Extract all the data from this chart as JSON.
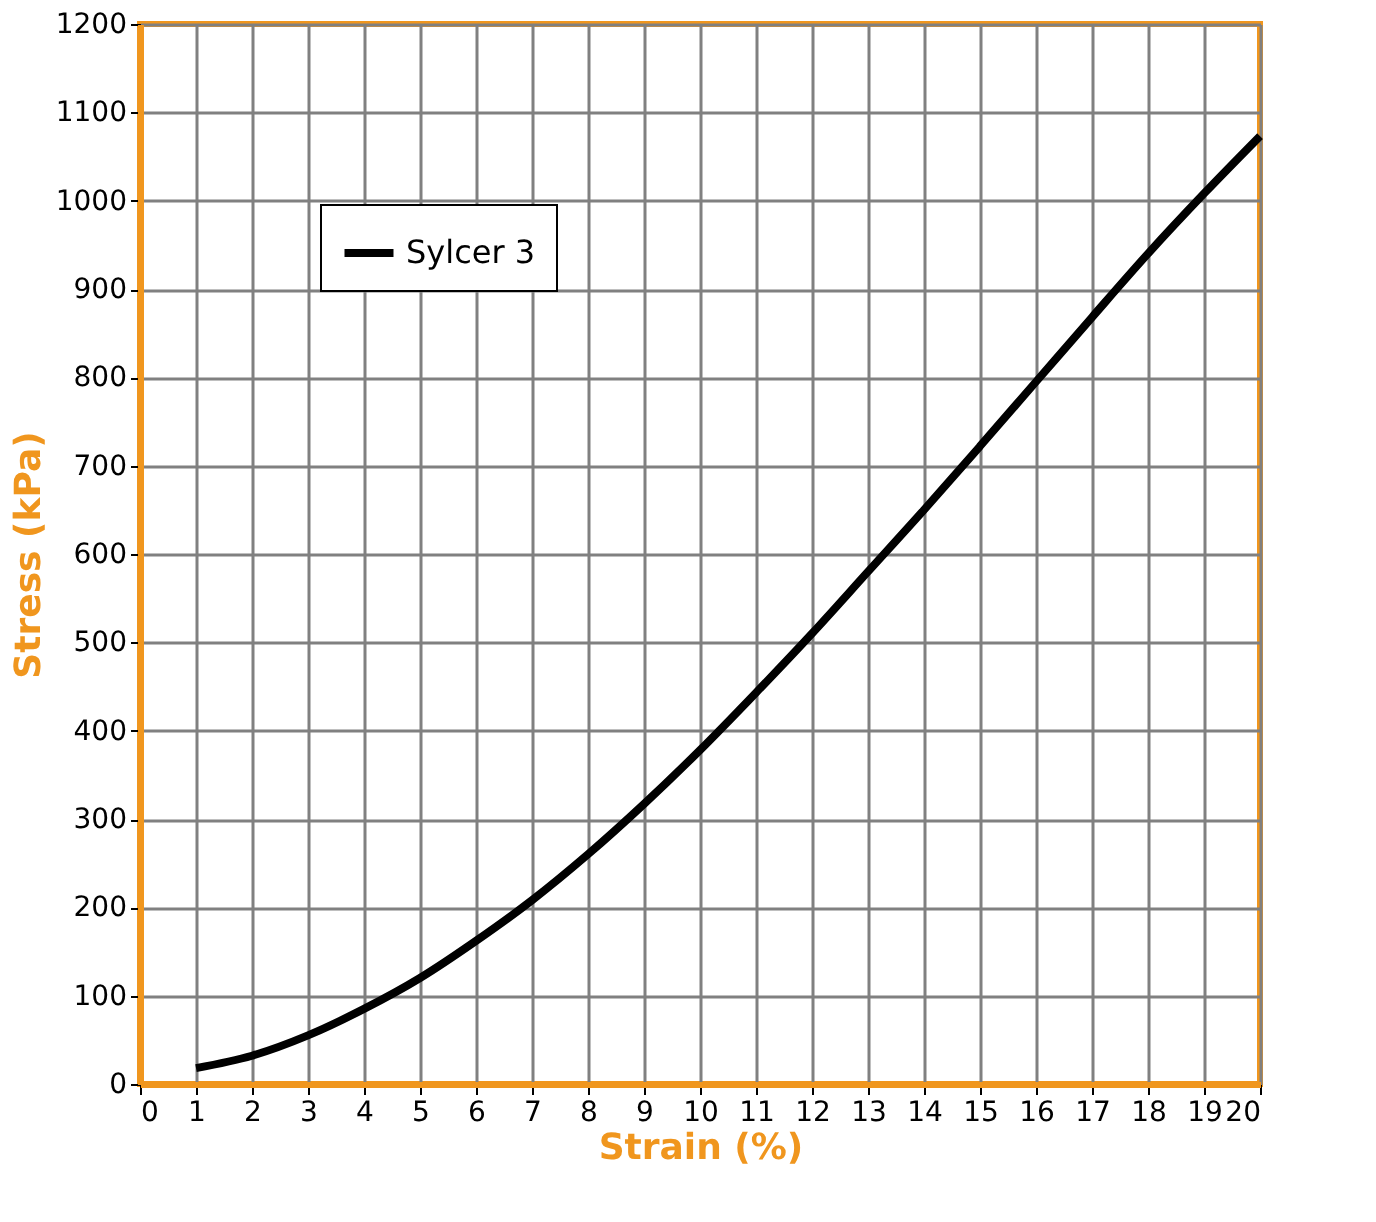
{
  "chart_data": {
    "type": "line",
    "xlabel": "Strain (%)",
    "ylabel": "Stress (kPa)",
    "x": [
      1,
      2,
      3,
      4,
      5,
      6,
      7,
      8,
      9,
      10,
      11,
      12,
      13,
      14,
      15,
      16,
      17,
      18,
      19,
      20
    ],
    "series": [
      {
        "name": "Sylcer 3",
        "color": "#000000",
        "values": [
          18,
          32,
          55,
          85,
          120,
          162,
          208,
          260,
          317,
          378,
          443,
          510,
          580,
          650,
          722,
          795,
          868,
          940,
          1008,
          1073
        ]
      }
    ],
    "xlim": [
      0,
      20
    ],
    "xticks": [
      0,
      1,
      2,
      3,
      4,
      5,
      6,
      7,
      8,
      9,
      10,
      11,
      12,
      13,
      14,
      15,
      16,
      17,
      18,
      19,
      20
    ],
    "ylim": [
      0,
      1200
    ],
    "yticks": [
      0,
      100,
      200,
      300,
      400,
      500,
      600,
      700,
      800,
      900,
      1000,
      1100,
      1200
    ],
    "grid": true,
    "legend": "top left",
    "marker": "none",
    "line_style": "solid"
  }
}
